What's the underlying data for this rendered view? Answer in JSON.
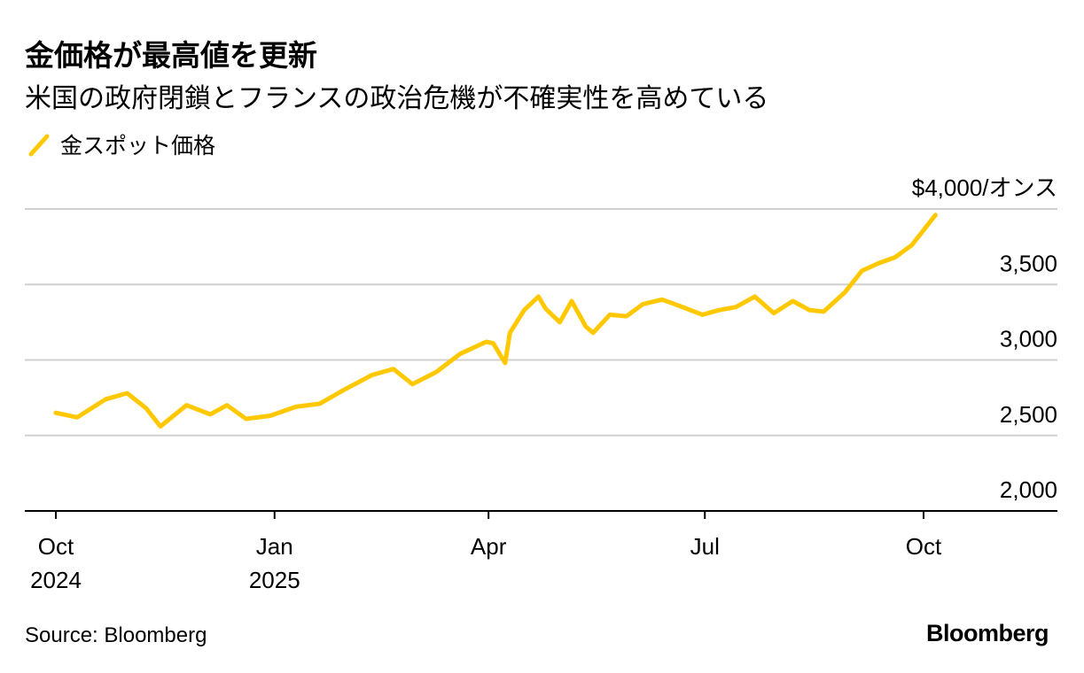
{
  "chart_data": {
    "type": "line",
    "title": "金価格が最高値を更新",
    "subtitle": "米国の政府閉鎖とフランスの政治危機が不確実性を高めている",
    "series": [
      {
        "name": "金スポット価格",
        "color": "#ffc800",
        "x": [
          "2024-10-01",
          "2024-10-10",
          "2024-10-22",
          "2024-10-31",
          "2024-11-08",
          "2024-11-14",
          "2024-11-25",
          "2024-12-05",
          "2024-12-12",
          "2024-12-20",
          "2024-12-30",
          "2025-01-10",
          "2025-01-20",
          "2025-01-30",
          "2025-02-11",
          "2025-02-20",
          "2025-02-28",
          "2025-03-10",
          "2025-03-20",
          "2025-03-31",
          "2025-04-03",
          "2025-04-08",
          "2025-04-10",
          "2025-04-16",
          "2025-04-22",
          "2025-04-25",
          "2025-05-01",
          "2025-05-06",
          "2025-05-12",
          "2025-05-15",
          "2025-05-22",
          "2025-05-29",
          "2025-06-05",
          "2025-06-13",
          "2025-06-20",
          "2025-06-30",
          "2025-07-07",
          "2025-07-14",
          "2025-07-22",
          "2025-07-30",
          "2025-08-07",
          "2025-08-14",
          "2025-08-20",
          "2025-08-29",
          "2025-09-05",
          "2025-09-12",
          "2025-09-19",
          "2025-09-26",
          "2025-10-01",
          "2025-10-06"
        ],
        "values": [
          2650,
          2620,
          2740,
          2780,
          2680,
          2560,
          2700,
          2640,
          2700,
          2610,
          2630,
          2690,
          2710,
          2800,
          2900,
          2940,
          2840,
          2920,
          3040,
          3120,
          3110,
          2980,
          3180,
          3330,
          3420,
          3340,
          3250,
          3390,
          3220,
          3180,
          3300,
          3290,
          3370,
          3400,
          3360,
          3300,
          3330,
          3350,
          3420,
          3310,
          3390,
          3330,
          3320,
          3450,
          3590,
          3640,
          3680,
          3760,
          3860,
          3960
        ]
      }
    ],
    "x_ticks": [
      {
        "date": "2024-10-01",
        "month": "Oct",
        "year": "2024"
      },
      {
        "date": "2025-01-01",
        "month": "Jan",
        "year": "2025"
      },
      {
        "date": "2025-04-01",
        "month": "Apr",
        "year": ""
      },
      {
        "date": "2025-07-01",
        "month": "Jul",
        "year": ""
      },
      {
        "date": "2025-10-01",
        "month": "Oct",
        "year": ""
      }
    ],
    "y_ticks": [
      {
        "value": 2000,
        "label": "2,000"
      },
      {
        "value": 2500,
        "label": "2,500"
      },
      {
        "value": 3000,
        "label": "3,000"
      },
      {
        "value": 3500,
        "label": "3,500"
      },
      {
        "value": 4000,
        "label": "$4,000/オンス"
      }
    ],
    "ylim": [
      2000,
      4000
    ],
    "grid": true,
    "legend_position": "top-left"
  },
  "footer": {
    "source": "Source: Bloomberg",
    "brand": "Bloomberg"
  }
}
